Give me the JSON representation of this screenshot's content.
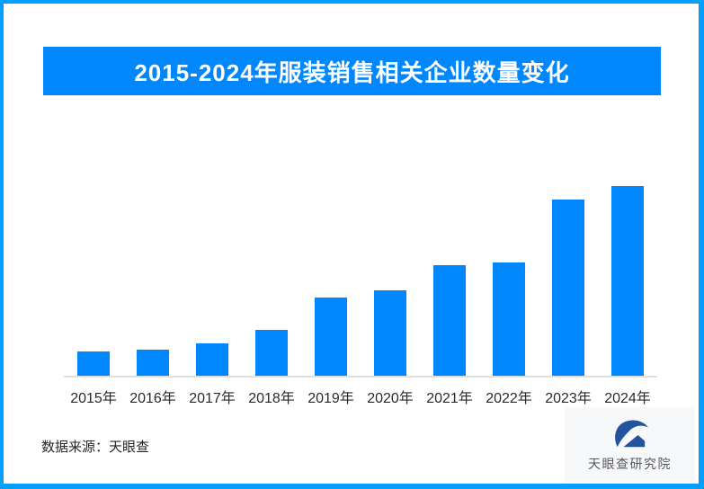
{
  "frame": {
    "border_color": "#01a0fe"
  },
  "title_banner": {
    "bg_color": "#0087fe",
    "text_color": "#ffffff"
  },
  "chart_data": {
    "type": "bar",
    "title": "2015-2024年服装销售相关企业数量变化",
    "categories": [
      "2015年",
      "2016年",
      "2017年",
      "2018年",
      "2019年",
      "2020年",
      "2021年",
      "2022年",
      "2023年",
      "2024年"
    ],
    "values": [
      12.8,
      13.7,
      17.1,
      24.2,
      41.2,
      45.0,
      58.3,
      59.7,
      92.9,
      100
    ],
    "values_note": "relative scale estimated from bar heights; chart displays no numeric axis or data labels",
    "ylim": [
      0,
      100
    ],
    "xlabel": "",
    "ylabel": "",
    "grid": false,
    "legend": false,
    "bar_color": "#0087fe",
    "axis_line_color": "#e0e0e0"
  },
  "footer": {
    "source_label": "数据来源：天眼查"
  },
  "logo": {
    "text": "天眼查研究院",
    "mark_color": "#24539e",
    "bg_color": "#f7f8fa"
  }
}
